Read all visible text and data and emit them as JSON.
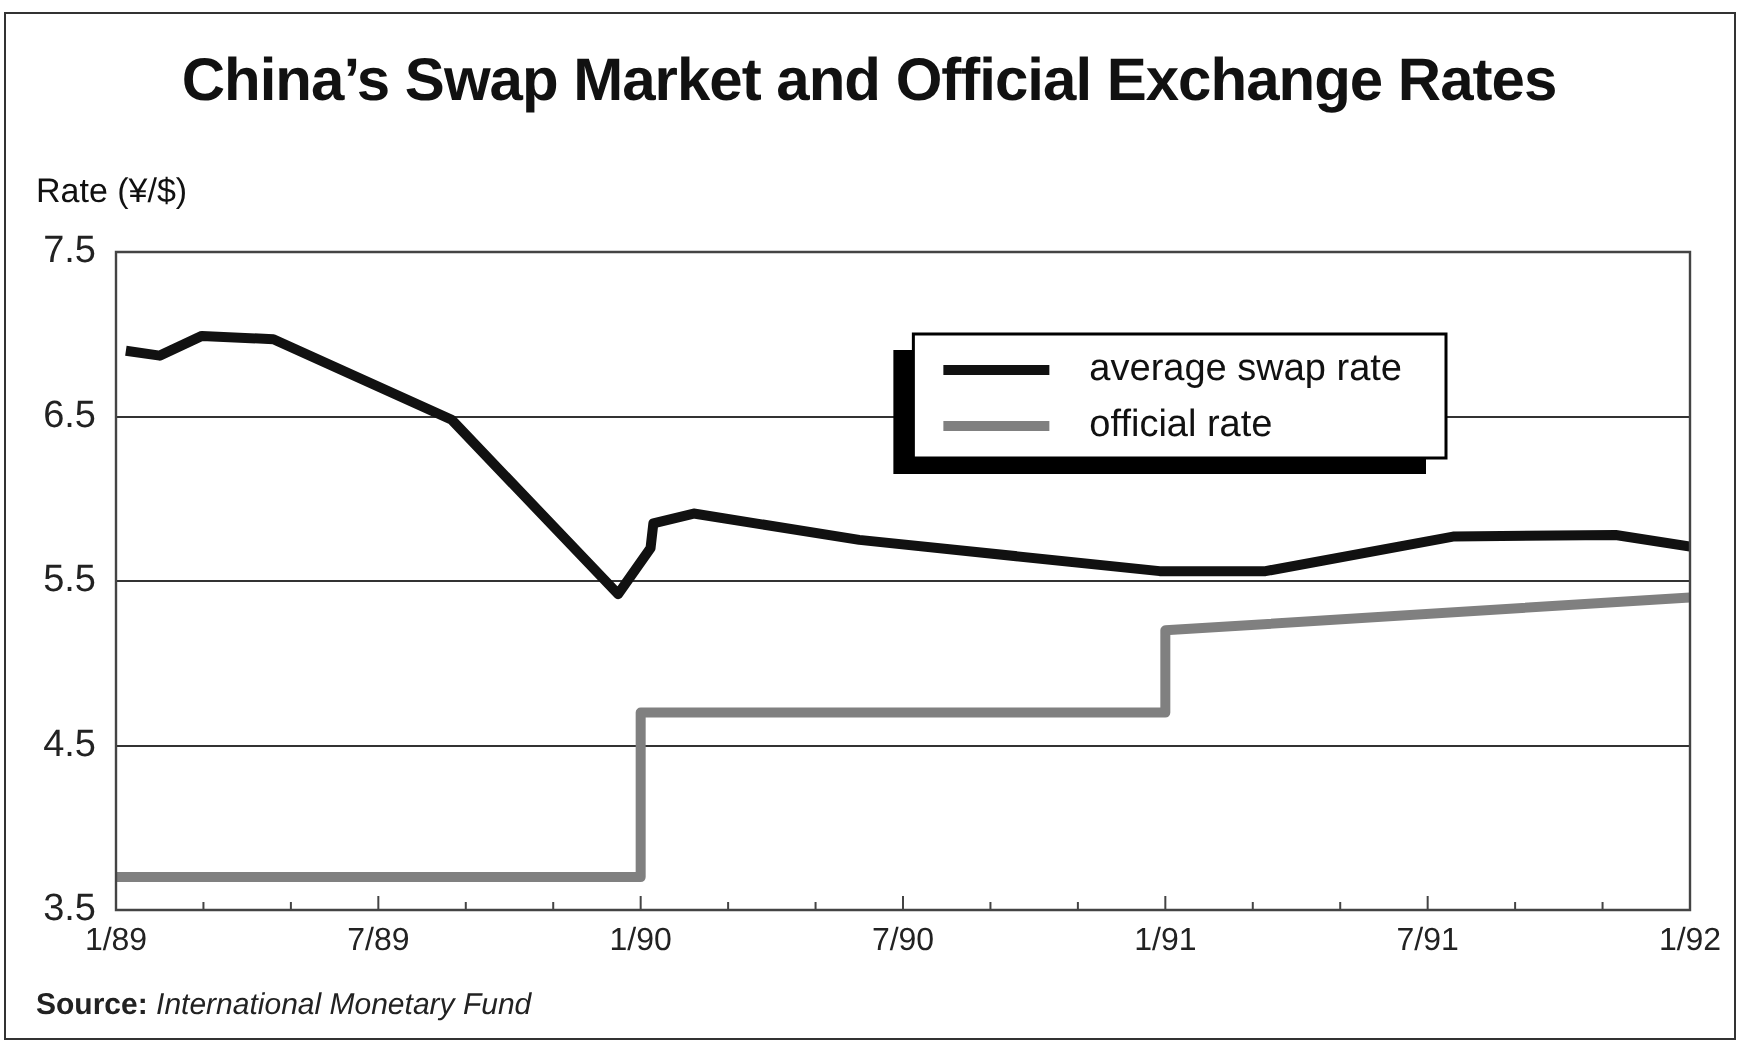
{
  "chart_data": {
    "type": "line",
    "title": "China’s Swap Market and Official Exchange Rates",
    "ylabel": "Rate (¥/$)",
    "annotations": [
      "Source: International Monetary Fund"
    ],
    "series": [
      {
        "name": "average swap rate",
        "color": "#111111",
        "x": [
          "1989-01-08",
          "1989-02-01",
          "1989-02-28",
          "1989-04-19",
          "1989-08-22",
          "1989-12-16",
          "1990-01-08",
          "1990-01-10",
          "1990-02-07",
          "1990-06-01",
          "1990-12-28",
          "1991-03-10",
          "1991-07-19",
          "1991-11-10",
          "1992-01-01"
        ],
        "values": [
          6.9,
          6.87,
          6.99,
          6.97,
          6.48,
          5.42,
          5.7,
          5.85,
          5.91,
          5.75,
          5.56,
          5.56,
          5.77,
          5.78,
          5.71
        ]
      },
      {
        "name": "official rate",
        "color": "#808080",
        "x": [
          "1989-01-01",
          "1990-01-01",
          "1990-01-01",
          "1991-01-01",
          "1991-01-01",
          "1992-01-01"
        ],
        "values": [
          3.7,
          3.7,
          4.7,
          4.7,
          5.2,
          5.4
        ]
      }
    ],
    "xlim": [
      "1989-01",
      "1992-01"
    ],
    "xticks": [
      {
        "value": "1989-01",
        "label": "1/89"
      },
      {
        "value": "1989-03",
        "label": null
      },
      {
        "value": "1989-05",
        "label": null
      },
      {
        "value": "1989-07",
        "label": "7/89"
      },
      {
        "value": "1989-09",
        "label": null
      },
      {
        "value": "1989-11",
        "label": null
      },
      {
        "value": "1990-01",
        "label": "1/90"
      },
      {
        "value": "1990-03",
        "label": null
      },
      {
        "value": "1990-05",
        "label": null
      },
      {
        "value": "1990-07",
        "label": "7/90"
      },
      {
        "value": "1990-09",
        "label": null
      },
      {
        "value": "1990-11",
        "label": null
      },
      {
        "value": "1991-01",
        "label": "1/91"
      },
      {
        "value": "1991-03",
        "label": null
      },
      {
        "value": "1991-05",
        "label": null
      },
      {
        "value": "1991-07",
        "label": "7/91"
      },
      {
        "value": "1991-09",
        "label": null
      },
      {
        "value": "1991-11",
        "label": null
      },
      {
        "value": "1992-01",
        "label": "1/92"
      }
    ],
    "ylim": [
      3.5,
      7.5
    ],
    "yticks": [
      3.5,
      4.5,
      5.5,
      6.5,
      7.5
    ],
    "grid": "y",
    "legend": "top right",
    "marker": "none",
    "line_style": "solid"
  }
}
